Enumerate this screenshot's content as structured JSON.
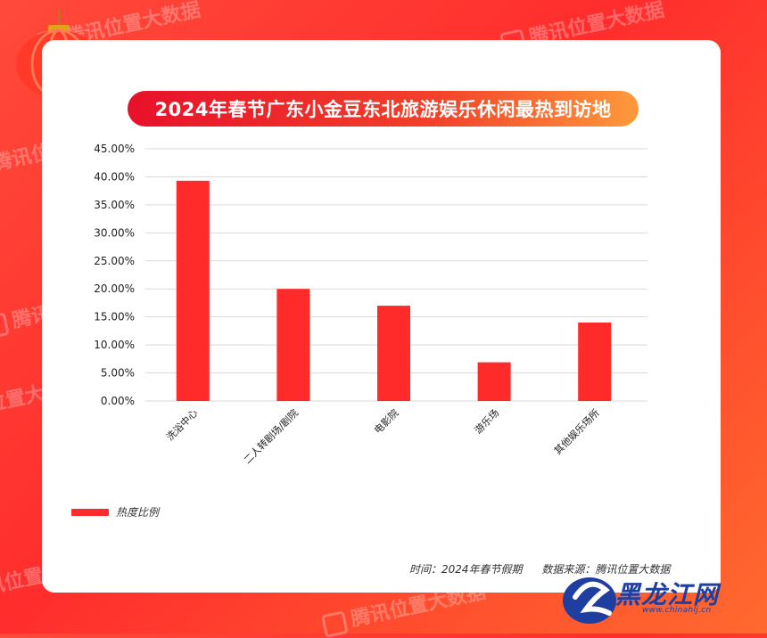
{
  "watermark": "腾讯位置大数据",
  "title": "2024年春节广东小金豆东北旅游娱乐休闲最热到访地",
  "chart_data": {
    "type": "bar",
    "categories": [
      "洗浴中心",
      "二人转剧场/剧院",
      "电影院",
      "游乐场",
      "其他娱乐场所"
    ],
    "series": [
      {
        "name": "热度比例",
        "values": [
          39.3,
          20.0,
          17.0,
          6.9,
          14.0
        ]
      }
    ],
    "ylim": [
      0,
      45
    ],
    "ytick_step": 5,
    "ytick_format": "percent_2dp",
    "grid": true,
    "legend_position": "bottom-left",
    "bar_color": "#ff2a2a"
  },
  "legend": {
    "label": "热度比例"
  },
  "footer": {
    "time": "时间：2024年春节假期",
    "source": "数据来源：腾讯位置大数据"
  },
  "logo": {
    "text": "黑龙江网",
    "url": "www.chinahlj.cn"
  }
}
